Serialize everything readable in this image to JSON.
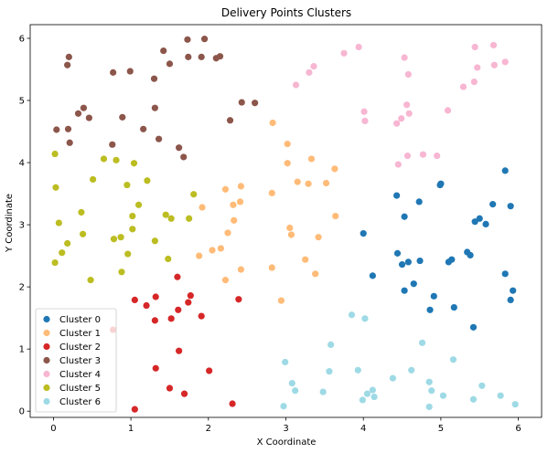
{
  "chart_data": {
    "type": "scatter",
    "title": "Delivery Points Clusters",
    "xlabel": "X Coordinate",
    "ylabel": "Y Coordinate",
    "xlim": [
      -0.3,
      6.3
    ],
    "ylim": [
      -0.1,
      6.22
    ],
    "xticks": [
      0,
      1,
      2,
      3,
      4,
      5,
      6
    ],
    "yticks": [
      0,
      1,
      2,
      3,
      4,
      5,
      6
    ],
    "grid": false,
    "legend_position": "lower-left",
    "series": [
      {
        "name": "Cluster 0",
        "color": "#1f77b4",
        "points": [
          [
            5.83,
            3.87
          ],
          [
            4.43,
            3.47
          ],
          [
            4.72,
            3.37
          ],
          [
            5.0,
            3.66
          ],
          [
            4.99,
            3.64
          ],
          [
            5.67,
            3.33
          ],
          [
            5.9,
            3.3
          ],
          [
            4.53,
            3.13
          ],
          [
            5.44,
            3.05
          ],
          [
            5.5,
            3.1
          ],
          [
            5.58,
            3.01
          ],
          [
            4.0,
            2.86
          ],
          [
            4.44,
            2.54
          ],
          [
            4.58,
            2.4
          ],
          [
            4.73,
            2.42
          ],
          [
            5.14,
            2.44
          ],
          [
            5.1,
            2.4
          ],
          [
            5.34,
            2.56
          ],
          [
            5.38,
            2.51
          ],
          [
            4.5,
            2.36
          ],
          [
            4.12,
            2.18
          ],
          [
            5.83,
            2.21
          ],
          [
            4.53,
            1.94
          ],
          [
            4.65,
            2.05
          ],
          [
            4.91,
            1.85
          ],
          [
            5.17,
            1.67
          ],
          [
            4.86,
            1.63
          ],
          [
            5.93,
            1.94
          ],
          [
            5.9,
            1.79
          ],
          [
            5.42,
            1.35
          ]
        ]
      },
      {
        "name": "Cluster 1",
        "color": "#ffbb78",
        "points": [
          [
            2.83,
            4.64
          ],
          [
            3.02,
            4.3
          ],
          [
            3.33,
            4.06
          ],
          [
            3.02,
            3.99
          ],
          [
            3.63,
            3.9
          ],
          [
            2.22,
            3.57
          ],
          [
            2.42,
            3.62
          ],
          [
            3.15,
            3.69
          ],
          [
            3.29,
            3.66
          ],
          [
            3.52,
            3.67
          ],
          [
            2.82,
            3.51
          ],
          [
            2.32,
            3.32
          ],
          [
            2.41,
            3.37
          ],
          [
            1.92,
            3.28
          ],
          [
            2.33,
            3.07
          ],
          [
            3.64,
            3.14
          ],
          [
            3.05,
            2.95
          ],
          [
            3.07,
            2.84
          ],
          [
            2.25,
            2.87
          ],
          [
            3.42,
            2.8
          ],
          [
            2.16,
            2.62
          ],
          [
            2.05,
            2.59
          ],
          [
            1.88,
            2.5
          ],
          [
            3.25,
            2.44
          ],
          [
            2.82,
            2.31
          ],
          [
            2.42,
            2.28
          ],
          [
            3.38,
            2.21
          ],
          [
            2.22,
            2.11
          ],
          [
            2.94,
            1.78
          ]
        ]
      },
      {
        "name": "Cluster 2",
        "color": "#d62728",
        "points": [
          [
            1.6,
            2.16
          ],
          [
            1.77,
            1.86
          ],
          [
            1.74,
            1.75
          ],
          [
            1.61,
            1.63
          ],
          [
            1.32,
            1.84
          ],
          [
            1.05,
            1.79
          ],
          [
            1.2,
            1.7
          ],
          [
            1.31,
            1.46
          ],
          [
            1.52,
            1.49
          ],
          [
            1.91,
            1.53
          ],
          [
            2.39,
            1.8
          ],
          [
            0.77,
            1.31
          ],
          [
            1.62,
            0.97
          ],
          [
            2.01,
            0.65
          ],
          [
            1.32,
            0.69
          ],
          [
            1.5,
            0.37
          ],
          [
            1.69,
            0.28
          ],
          [
            2.31,
            0.12
          ],
          [
            1.05,
            0.03
          ]
        ]
      },
      {
        "name": "Cluster 3",
        "color": "#8c564b",
        "points": [
          [
            1.73,
            5.98
          ],
          [
            1.95,
            5.99
          ],
          [
            0.2,
            5.7
          ],
          [
            1.42,
            5.8
          ],
          [
            2.15,
            5.71
          ],
          [
            0.18,
            5.57
          ],
          [
            1.5,
            5.59
          ],
          [
            1.74,
            5.7
          ],
          [
            1.91,
            5.7
          ],
          [
            2.1,
            5.68
          ],
          [
            0.77,
            5.45
          ],
          [
            0.99,
            5.47
          ],
          [
            1.3,
            5.35
          ],
          [
            2.43,
            4.97
          ],
          [
            2.6,
            4.96
          ],
          [
            0.39,
            4.88
          ],
          [
            0.32,
            4.79
          ],
          [
            0.46,
            4.72
          ],
          [
            0.89,
            4.73
          ],
          [
            1.31,
            4.88
          ],
          [
            2.28,
            4.68
          ],
          [
            0.04,
            4.53
          ],
          [
            0.19,
            4.54
          ],
          [
            1.16,
            4.54
          ],
          [
            1.36,
            4.38
          ],
          [
            0.21,
            4.32
          ],
          [
            0.76,
            4.29
          ],
          [
            1.62,
            4.24
          ],
          [
            1.68,
            4.09
          ]
        ]
      },
      {
        "name": "Cluster 4",
        "color": "#f7b6d2",
        "points": [
          [
            3.94,
            5.86
          ],
          [
            5.44,
            5.86
          ],
          [
            5.68,
            5.89
          ],
          [
            3.75,
            5.76
          ],
          [
            4.53,
            5.69
          ],
          [
            5.83,
            5.62
          ],
          [
            5.69,
            5.57
          ],
          [
            3.36,
            5.55
          ],
          [
            5.47,
            5.53
          ],
          [
            3.3,
            5.45
          ],
          [
            4.58,
            5.42
          ],
          [
            5.29,
            5.22
          ],
          [
            5.43,
            5.3
          ],
          [
            3.13,
            5.25
          ],
          [
            4.56,
            4.93
          ],
          [
            5.09,
            4.84
          ],
          [
            4.01,
            4.82
          ],
          [
            4.49,
            4.71
          ],
          [
            4.59,
            4.79
          ],
          [
            4.43,
            4.63
          ],
          [
            4.02,
            4.67
          ],
          [
            4.77,
            4.13
          ],
          [
            4.57,
            4.11
          ],
          [
            4.95,
            4.11
          ],
          [
            4.45,
            3.97
          ]
        ]
      },
      {
        "name": "Cluster 5",
        "color": "#bcbd22",
        "points": [
          [
            0.02,
            4.14
          ],
          [
            0.65,
            4.06
          ],
          [
            0.81,
            4.04
          ],
          [
            1.04,
            3.99
          ],
          [
            1.21,
            3.71
          ],
          [
            0.51,
            3.73
          ],
          [
            0.03,
            3.6
          ],
          [
            0.95,
            3.64
          ],
          [
            1.81,
            3.49
          ],
          [
            1.1,
            3.32
          ],
          [
            0.36,
            3.2
          ],
          [
            1.45,
            3.16
          ],
          [
            1.52,
            3.1
          ],
          [
            1.75,
            3.1
          ],
          [
            1.02,
            3.14
          ],
          [
            0.07,
            3.03
          ],
          [
            0.78,
            2.77
          ],
          [
            0.87,
            2.8
          ],
          [
            1.02,
            2.93
          ],
          [
            0.38,
            2.85
          ],
          [
            0.18,
            2.7
          ],
          [
            0.11,
            2.55
          ],
          [
            0.96,
            2.53
          ],
          [
            1.31,
            2.74
          ],
          [
            1.48,
            2.45
          ],
          [
            0.02,
            2.39
          ],
          [
            0.88,
            2.24
          ],
          [
            0.48,
            2.11
          ]
        ]
      },
      {
        "name": "Cluster 6",
        "color": "#9edae5",
        "points": [
          [
            3.85,
            1.55
          ],
          [
            4.02,
            1.49
          ],
          [
            4.76,
            1.1
          ],
          [
            3.58,
            1.07
          ],
          [
            5.16,
            0.83
          ],
          [
            2.99,
            0.79
          ],
          [
            3.56,
            0.64
          ],
          [
            3.93,
            0.66
          ],
          [
            4.62,
            0.66
          ],
          [
            4.38,
            0.53
          ],
          [
            4.85,
            0.47
          ],
          [
            3.08,
            0.45
          ],
          [
            5.53,
            0.41
          ],
          [
            3.12,
            0.33
          ],
          [
            3.48,
            0.31
          ],
          [
            4.12,
            0.34
          ],
          [
            4.05,
            0.28
          ],
          [
            4.14,
            0.23
          ],
          [
            4.88,
            0.33
          ],
          [
            5.03,
            0.25
          ],
          [
            5.42,
            0.19
          ],
          [
            5.77,
            0.25
          ],
          [
            3.99,
            0.18
          ],
          [
            2.97,
            0.08
          ],
          [
            4.85,
            0.07
          ],
          [
            5.96,
            0.11
          ]
        ]
      }
    ]
  }
}
